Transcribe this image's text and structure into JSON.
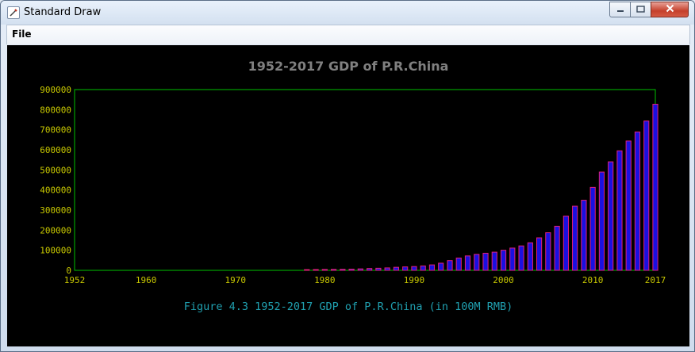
{
  "window": {
    "title": "Standard Draw",
    "controls": {
      "minimize": "▭",
      "maximize": "□",
      "close": "✕"
    }
  },
  "menu": {
    "file_label": "File"
  },
  "icons": {
    "app": "app-window-icon",
    "minimize": "minimize-icon",
    "maximize": "maximize-icon",
    "close": "close-icon"
  },
  "colors": {
    "title": "#808080",
    "axis": "#00c000",
    "tick_label": "#c8c800",
    "bar_fill": "#1a10e0",
    "bar_edge": "#e0207a",
    "caption": "#20a0b0",
    "background": "#000000"
  },
  "chart_data": {
    "type": "bar",
    "title": "1952-2017 GDP of P.R.China",
    "caption": "Figure 4.3 1952-2017 GDP of P.R.China (in 100M RMB)",
    "xlabel": "",
    "ylabel": "",
    "xlim": [
      1952,
      2017
    ],
    "ylim": [
      0,
      900000
    ],
    "x_ticks": [
      1952,
      1960,
      1970,
      1980,
      1990,
      2000,
      2010,
      2017
    ],
    "y_ticks": [
      0,
      100000,
      200000,
      300000,
      400000,
      500000,
      600000,
      700000,
      800000,
      900000
    ],
    "grid": false,
    "legend": "none",
    "series": [
      {
        "x": [
          1978,
          1979,
          1980,
          1981,
          1982,
          1983,
          1984,
          1985,
          1986,
          1987,
          1988,
          1989,
          1990,
          1991,
          1992,
          1993,
          1994,
          1995,
          1996,
          1997,
          1998,
          1999,
          2000,
          2001,
          2002,
          2003,
          2004,
          2005,
          2006,
          2007,
          2008,
          2009,
          2010,
          2011,
          2012,
          2013,
          2014,
          2015,
          2016,
          2017
        ],
        "values": [
          3679,
          4100,
          4588,
          4936,
          5373,
          6021,
          7279,
          9099,
          10376,
          12175,
          15180,
          17180,
          18873,
          22006,
          27195,
          35673,
          48637,
          61340,
          71814,
          79715,
          85196,
          90564,
          100280,
          110863,
          121717,
          137422,
          161840,
          187319,
          219439,
          270232,
          319516,
          349081,
          413030,
          489301,
          540367,
          595244,
          643974,
          689052,
          743586,
          827122
        ]
      }
    ]
  }
}
